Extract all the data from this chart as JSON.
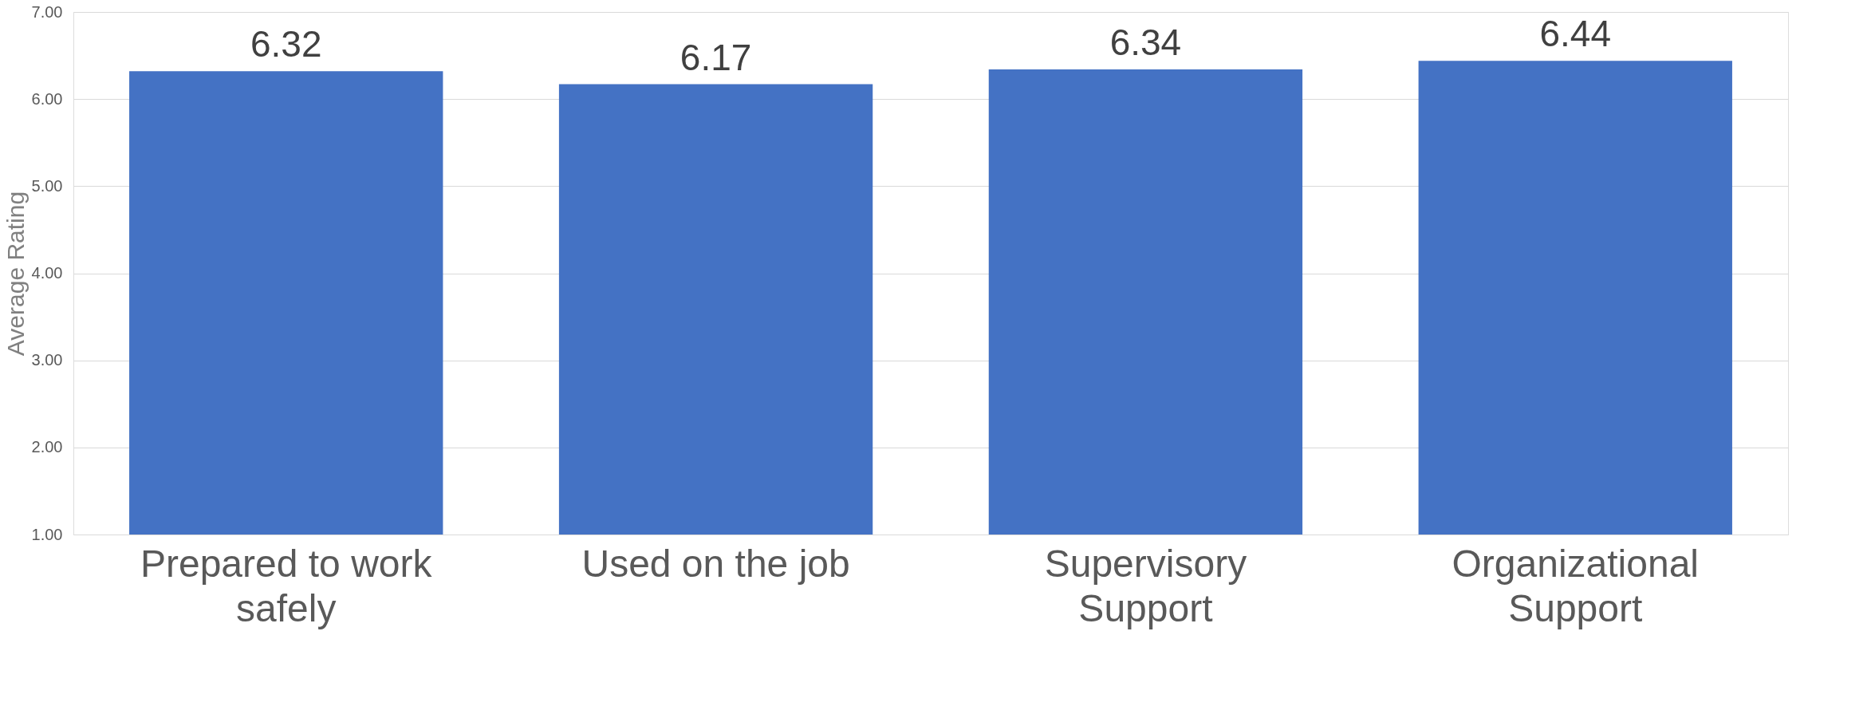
{
  "chart_data": {
    "type": "bar",
    "ylabel": "Average Rating",
    "categories": [
      "Prepared to work safely",
      "Used on the job",
      "Supervisory Support",
      "Organizational Support"
    ],
    "values": [
      6.32,
      6.17,
      6.34,
      6.44
    ],
    "color": "#4472c4",
    "ylim": [
      1,
      7
    ],
    "yticks": [
      {
        "value": 1,
        "label": "1.00"
      },
      {
        "value": 2,
        "label": "2.00"
      },
      {
        "value": 3,
        "label": "3.00"
      },
      {
        "value": 4,
        "label": "4.00"
      },
      {
        "value": 5,
        "label": "5.00"
      },
      {
        "value": 6,
        "label": "6.00"
      },
      {
        "value": 7,
        "label": "7.00"
      }
    ],
    "grid": "y",
    "data_labels": true
  }
}
